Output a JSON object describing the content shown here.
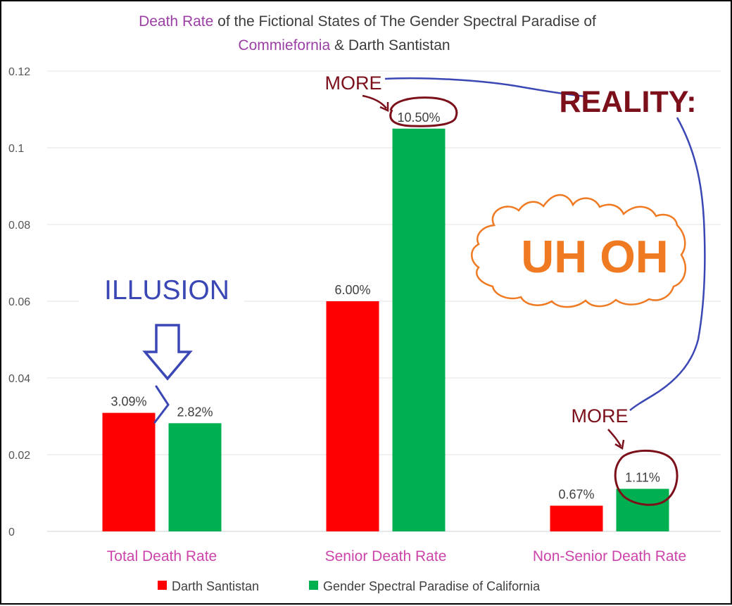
{
  "colors": {
    "series_red": "#ff0000",
    "series_green": "#00b050",
    "title_accent": "#9b3fa5",
    "category_label": "#cc44aa",
    "annotation_dark_red": "#7b0f1a",
    "annotation_blue": "#3a47b5",
    "annotation_orange": "#f07a22"
  },
  "title": {
    "part1_accent": "Death Rate",
    "part1_rest": " of the Fictional States of The Gender Spectral Paradise of",
    "part2_accent": "Commiefornia",
    "part2_rest": " & Darth Santistan"
  },
  "chart_data": {
    "type": "bar",
    "categories": [
      "Total Death Rate",
      "Senior Death Rate",
      "Non-Senior Death Rate"
    ],
    "series": [
      {
        "name": "Darth Santistan",
        "values": [
          0.0309,
          0.06,
          0.0067
        ],
        "data_labels": [
          "3.09%",
          "6.00%",
          "0.67%"
        ]
      },
      {
        "name": "Gender Spectral Paradise of California",
        "values": [
          0.0282,
          0.105,
          0.0111
        ],
        "data_labels": [
          "2.82%",
          "10.50%",
          "1.11%"
        ]
      }
    ],
    "ylim": [
      0,
      0.12
    ],
    "y_ticks": [
      "0",
      "0.02",
      "0.04",
      "0.06",
      "0.08",
      "0.1",
      "0.12"
    ],
    "grid": true,
    "legend_position": "bottom"
  },
  "annotations": {
    "illusion": "ILLUSION",
    "reality": "REALITY:",
    "uh_oh": "UH OH",
    "more_top": "MORE",
    "more_bottom": "MORE"
  }
}
